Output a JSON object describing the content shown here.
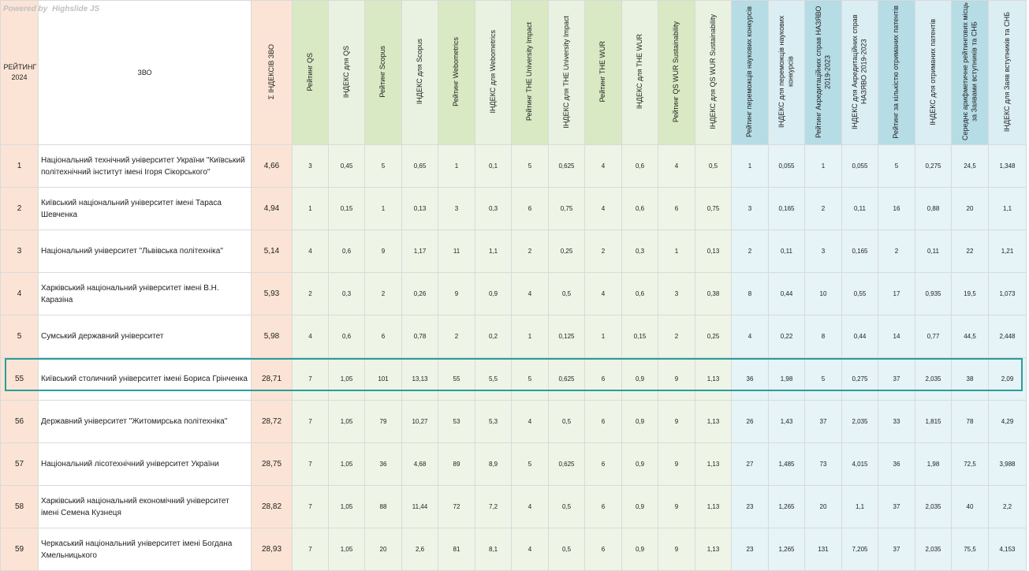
{
  "powered_by": {
    "prefix": "Powered by",
    "brand": "Highslide JS"
  },
  "headers": {
    "rank": "РЕЙТИНГ 2024",
    "name": "ЗВО",
    "sum": "Σ ІНДЕКСІВ ЗВО",
    "cols": [
      "Рейтинг QS",
      "ІНДЕКС для QS",
      "Рейтинг Scopus",
      "ІНДЕКС для Scopus",
      "Рейтинг Webometrics",
      "ІНДЕКС для Webometrics",
      "Рейтинг THE University Impact",
      "ІНДЕКС для THE University Impact",
      "Рейтинг THE WUR",
      "ІНДЕКС для THE WUR",
      "Рейтинг QS WUR Sustainability",
      "ІНДЕКС для QS WUR Sustainability",
      "Рейтинг переможців наукових конкурсів",
      "ІНДЕКС для переможців наукових конкурсів",
      "Рейтинг Акредитаційних справ НАЗЯВО 2019-2023",
      "ІНДЕКС для Акредитаційних справ НАЗЯВО 2019-2023",
      "Рейтинг за кількістю отриманих патентів",
      "ІНДЕКС для отриманих патентів",
      "Середнє арифметичне рейтингових місць за Заявами вступників та СНБ",
      "ІНДЕКС для Заяв вступників та СНБ"
    ]
  },
  "rows": [
    {
      "rank": "1",
      "name": "Національний технічний університет України \"Київський політехнічний інститут імені Ігоря Сікорського\"",
      "sum": "4,66",
      "vals": [
        "3",
        "0,45",
        "5",
        "0,65",
        "1",
        "0,1",
        "5",
        "0,625",
        "4",
        "0,6",
        "4",
        "0,5",
        "1",
        "0,055",
        "1",
        "0,055",
        "5",
        "0,275",
        "24,5",
        "1,348"
      ]
    },
    {
      "rank": "2",
      "name": "Київський національний університет імені Тараса Шевченка",
      "sum": "4,94",
      "vals": [
        "1",
        "0,15",
        "1",
        "0,13",
        "3",
        "0,3",
        "6",
        "0,75",
        "4",
        "0,6",
        "6",
        "0,75",
        "3",
        "0,165",
        "2",
        "0,11",
        "16",
        "0,88",
        "20",
        "1,1"
      ]
    },
    {
      "rank": "3",
      "name": "Національний університет \"Львівська політехніка\"",
      "sum": "5,14",
      "vals": [
        "4",
        "0,6",
        "9",
        "1,17",
        "11",
        "1,1",
        "2",
        "0,25",
        "2",
        "0,3",
        "1",
        "0,13",
        "2",
        "0,11",
        "3",
        "0,165",
        "2",
        "0,11",
        "22",
        "1,21"
      ]
    },
    {
      "rank": "4",
      "name": "Харківський національний університет імені В.Н. Каразіна",
      "sum": "5,93",
      "vals": [
        "2",
        "0,3",
        "2",
        "0,26",
        "9",
        "0,9",
        "4",
        "0,5",
        "4",
        "0,6",
        "3",
        "0,38",
        "8",
        "0,44",
        "10",
        "0,55",
        "17",
        "0,935",
        "19,5",
        "1,073"
      ]
    },
    {
      "rank": "5",
      "name": "Сумський державний університет",
      "sum": "5,98",
      "vals": [
        "4",
        "0,6",
        "6",
        "0,78",
        "2",
        "0,2",
        "1",
        "0,125",
        "1",
        "0,15",
        "2",
        "0,25",
        "4",
        "0,22",
        "8",
        "0,44",
        "14",
        "0,77",
        "44,5",
        "2,448"
      ]
    },
    {
      "rank": "55",
      "name": "Київський столичний університет імені Бориса Грінченка",
      "sum": "28,71",
      "vals": [
        "7",
        "1,05",
        "101",
        "13,13",
        "55",
        "5,5",
        "5",
        "0,625",
        "6",
        "0,9",
        "9",
        "1,13",
        "36",
        "1,98",
        "5",
        "0,275",
        "37",
        "2,035",
        "38",
        "2,09"
      ]
    },
    {
      "rank": "56",
      "name": "Державний університет \"Житомирська політехніка\"",
      "sum": "28,72",
      "vals": [
        "7",
        "1,05",
        "79",
        "10,27",
        "53",
        "5,3",
        "4",
        "0,5",
        "6",
        "0,9",
        "9",
        "1,13",
        "26",
        "1,43",
        "37",
        "2,035",
        "33",
        "1,815",
        "78",
        "4,29"
      ]
    },
    {
      "rank": "57",
      "name": "Національний лісотехнічний університет України",
      "sum": "28,75",
      "vals": [
        "7",
        "1,05",
        "36",
        "4,68",
        "89",
        "8,9",
        "5",
        "0,625",
        "6",
        "0,9",
        "9",
        "1,13",
        "27",
        "1,485",
        "73",
        "4,015",
        "36",
        "1,98",
        "72,5",
        "3,988"
      ]
    },
    {
      "rank": "58",
      "name": "Харківський національний економічний університет імені Семена Кузнеця",
      "sum": "28,82",
      "vals": [
        "7",
        "1,05",
        "88",
        "11,44",
        "72",
        "7,2",
        "4",
        "0,5",
        "6",
        "0,9",
        "9",
        "1,13",
        "23",
        "1,265",
        "20",
        "1,1",
        "37",
        "2,035",
        "40",
        "2,2"
      ]
    },
    {
      "rank": "59",
      "name": "Черкаський національний університет імені Богдана Хмельницького",
      "sum": "28,93",
      "vals": [
        "7",
        "1,05",
        "20",
        "2,6",
        "81",
        "8,1",
        "4",
        "0,5",
        "6",
        "0,9",
        "9",
        "1,13",
        "23",
        "1,265",
        "131",
        "7,205",
        "37",
        "2,035",
        "75,5",
        "4,153"
      ]
    }
  ],
  "highlighted_rank": "55",
  "colors": {
    "rank_header": "#fbe4d5",
    "sum_header": "#fbe4d5",
    "international_header": "#d8e9c3",
    "national_header": "#b6dce6",
    "highlight_border": "#2a9d9a"
  }
}
